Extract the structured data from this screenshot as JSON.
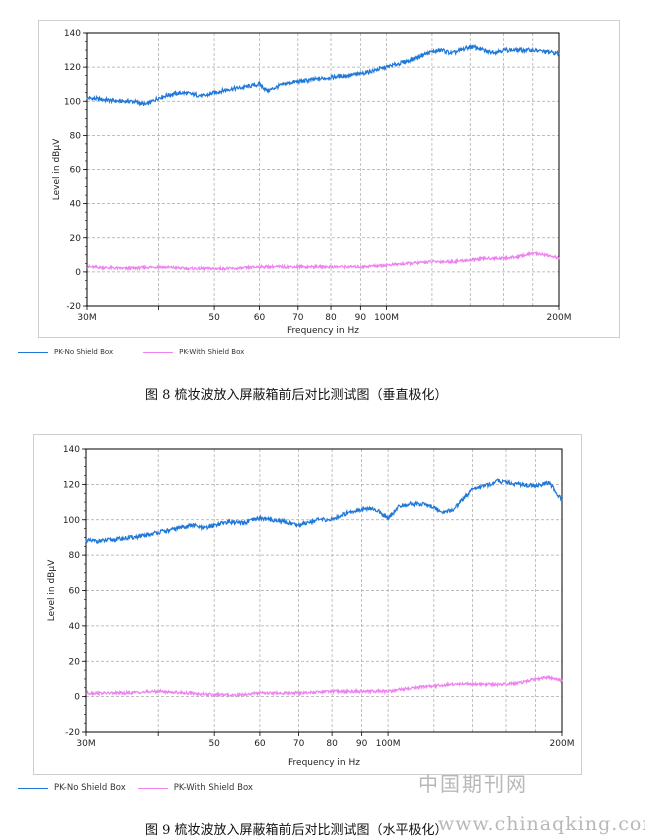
{
  "chart_data": [
    {
      "type": "line",
      "xlabel": "Frequency in Hz",
      "ylabel": "Level in dBµV",
      "x_scale": "log",
      "xlim": [
        30,
        200
      ],
      "ylim": [
        -20,
        140
      ],
      "yticks": [
        -20,
        0,
        20,
        40,
        60,
        80,
        100,
        120,
        140
      ],
      "xticks": [
        30,
        40,
        50,
        60,
        70,
        80,
        90,
        100,
        200
      ],
      "xtick_labels": [
        "30M",
        "",
        "50",
        "60",
        "70",
        "80",
        "90",
        "100M",
        "200M"
      ],
      "grid": true,
      "legend_position": "bottom-left",
      "series": [
        {
          "name": "PK-No Shield Box",
          "color": "#1f78d8",
          "x": [
            30,
            32,
            34,
            36,
            38,
            40,
            42,
            44,
            46,
            48,
            50,
            53,
            56,
            60,
            62,
            65,
            68,
            72,
            76,
            80,
            85,
            90,
            95,
            100,
            105,
            110,
            115,
            120,
            125,
            130,
            135,
            140,
            145,
            150,
            155,
            160,
            170,
            180,
            190,
            200
          ],
          "values": [
            102,
            101,
            100,
            100,
            98,
            102,
            104,
            105,
            104,
            103,
            105,
            107,
            108,
            110,
            106,
            109,
            111,
            112,
            113,
            114,
            115,
            116,
            118,
            120,
            122,
            124,
            127,
            129,
            130,
            128,
            130,
            132,
            131,
            129,
            129,
            130,
            130,
            130,
            129,
            128
          ]
        },
        {
          "name": "PK-With Shield Box",
          "color": "#ee82ee",
          "x": [
            30,
            35,
            40,
            45,
            50,
            55,
            60,
            70,
            80,
            90,
            100,
            110,
            120,
            130,
            140,
            150,
            160,
            170,
            180,
            190,
            200
          ],
          "values": [
            3,
            2,
            3,
            2,
            2,
            2,
            3,
            3,
            3,
            3,
            4,
            5,
            6,
            6,
            7,
            8,
            8,
            9,
            11,
            10,
            8
          ]
        }
      ]
    },
    {
      "type": "line",
      "xlabel": "Frequency in Hz",
      "ylabel": "Level in dBµV",
      "x_scale": "log",
      "xlim": [
        30,
        200
      ],
      "ylim": [
        -20,
        140
      ],
      "yticks": [
        -20,
        0,
        20,
        40,
        60,
        80,
        100,
        120,
        140
      ],
      "xticks": [
        30,
        40,
        50,
        60,
        70,
        80,
        90,
        100,
        200
      ],
      "xtick_labels": [
        "30M",
        "",
        "50",
        "60",
        "70",
        "80",
        "90",
        "100M",
        "200M"
      ],
      "grid": true,
      "legend_position": "bottom-left",
      "series": [
        {
          "name": "PK-No Shield Box",
          "color": "#1f78d8",
          "x": [
            30,
            32,
            34,
            36,
            38,
            40,
            42,
            44,
            46,
            48,
            50,
            53,
            56,
            60,
            63,
            66,
            70,
            73,
            76,
            80,
            85,
            90,
            95,
            100,
            105,
            110,
            115,
            120,
            125,
            130,
            135,
            140,
            145,
            150,
            155,
            160,
            170,
            180,
            190,
            200
          ],
          "values": [
            88,
            88,
            89,
            90,
            91,
            93,
            94,
            96,
            97,
            95,
            97,
            99,
            98,
            101,
            100,
            99,
            97,
            99,
            100,
            100,
            104,
            106,
            106,
            101,
            108,
            109,
            109,
            107,
            104,
            106,
            112,
            117,
            119,
            120,
            122,
            121,
            120,
            119,
            121,
            111
          ]
        },
        {
          "name": "PK-With Shield Box",
          "color": "#ee82ee",
          "x": [
            30,
            35,
            40,
            45,
            50,
            55,
            60,
            70,
            80,
            90,
            100,
            110,
            120,
            130,
            140,
            150,
            160,
            170,
            180,
            190,
            200
          ],
          "values": [
            2,
            2,
            3,
            2,
            1,
            1,
            2,
            2,
            3,
            3,
            3,
            5,
            6,
            7,
            7,
            7,
            7,
            8,
            10,
            11,
            9
          ]
        }
      ]
    }
  ],
  "captions": {
    "fig8": "图 8 梳妆波放入屏蔽箱前后对比测试图（垂直极化）",
    "fig9": "图 9 梳妆波放入屏蔽箱前后对比测试图（水平极化）"
  },
  "watermark": {
    "cn": "中国期刊网",
    "url": "www.chinaqking.com"
  }
}
